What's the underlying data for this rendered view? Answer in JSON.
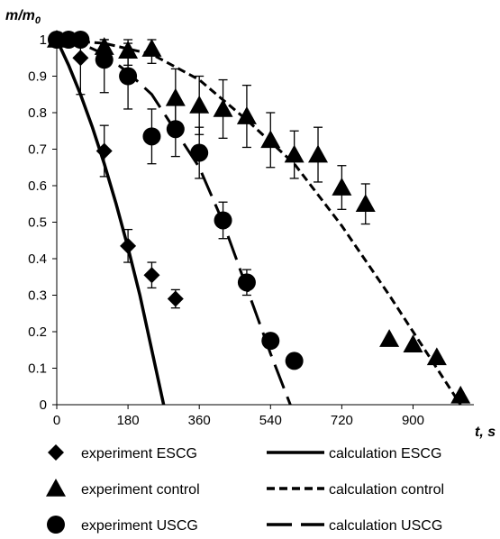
{
  "chart_data": {
    "type": "scatter",
    "xlabel": "t, s",
    "ylabel": "m/m0",
    "xlim": [
      0,
      1040
    ],
    "ylim": [
      0,
      1
    ],
    "x_ticks": [
      0,
      180,
      360,
      540,
      720,
      900
    ],
    "y_ticks": [
      0,
      0.1,
      0.2,
      0.3,
      0.4,
      0.5,
      0.6,
      0.7,
      0.8,
      0.9,
      1
    ],
    "y_tick_labels": [
      "0",
      "0.1",
      "0.2",
      "0.3",
      "0.4",
      "0.5",
      "0.6",
      "0.7",
      "0.8",
      "0.9",
      "1"
    ],
    "grid": false,
    "legend_position": "bottom",
    "series": [
      {
        "name": "experiment ESCG",
        "kind": "points",
        "marker": "diamond",
        "points": [
          {
            "x": 0,
            "y": 1.0,
            "err": 0
          },
          {
            "x": 30,
            "y": 1.0,
            "err": 0
          },
          {
            "x": 60,
            "y": 0.95,
            "err": 0.1
          },
          {
            "x": 120,
            "y": 0.695,
            "err": 0.07
          },
          {
            "x": 180,
            "y": 0.435,
            "err": 0.045
          },
          {
            "x": 240,
            "y": 0.355,
            "err": 0.035
          },
          {
            "x": 300,
            "y": 0.29,
            "err": 0.025
          }
        ]
      },
      {
        "name": "experiment control",
        "kind": "points",
        "marker": "triangle",
        "points": [
          {
            "x": 0,
            "y": 1.0,
            "err": 0
          },
          {
            "x": 120,
            "y": 0.98,
            "err": 0.04
          },
          {
            "x": 180,
            "y": 0.97,
            "err": 0.04
          },
          {
            "x": 240,
            "y": 0.975,
            "err": 0.04
          },
          {
            "x": 300,
            "y": 0.84,
            "err": 0.08
          },
          {
            "x": 360,
            "y": 0.82,
            "err": 0.08
          },
          {
            "x": 420,
            "y": 0.81,
            "err": 0.08
          },
          {
            "x": 480,
            "y": 0.79,
            "err": 0.085
          },
          {
            "x": 540,
            "y": 0.725,
            "err": 0.075
          },
          {
            "x": 600,
            "y": 0.685,
            "err": 0.065
          },
          {
            "x": 660,
            "y": 0.685,
            "err": 0.075
          },
          {
            "x": 720,
            "y": 0.595,
            "err": 0.06
          },
          {
            "x": 780,
            "y": 0.55,
            "err": 0.055
          },
          {
            "x": 840,
            "y": 0.18,
            "err": 0
          },
          {
            "x": 900,
            "y": 0.165,
            "err": 0
          },
          {
            "x": 960,
            "y": 0.13,
            "err": 0
          },
          {
            "x": 1020,
            "y": 0.025,
            "err": 0
          }
        ]
      },
      {
        "name": "experiment USCG",
        "kind": "points",
        "marker": "circle",
        "points": [
          {
            "x": 0,
            "y": 1.0,
            "err": 0
          },
          {
            "x": 30,
            "y": 1.0,
            "err": 0
          },
          {
            "x": 60,
            "y": 1.0,
            "err": 0
          },
          {
            "x": 120,
            "y": 0.945,
            "err": 0.09
          },
          {
            "x": 180,
            "y": 0.9,
            "err": 0.09
          },
          {
            "x": 240,
            "y": 0.735,
            "err": 0.075
          },
          {
            "x": 300,
            "y": 0.755,
            "err": 0.075
          },
          {
            "x": 360,
            "y": 0.69,
            "err": 0.07
          },
          {
            "x": 420,
            "y": 0.505,
            "err": 0.05
          },
          {
            "x": 480,
            "y": 0.335,
            "err": 0.035
          },
          {
            "x": 540,
            "y": 0.175,
            "err": 0
          },
          {
            "x": 600,
            "y": 0.12,
            "err": 0
          }
        ]
      },
      {
        "name": "calculation ESCG",
        "kind": "line",
        "style": "solid",
        "x": [
          0,
          30,
          60,
          90,
          120,
          150,
          180,
          210,
          240,
          270
        ],
        "y": [
          1.0,
          0.93,
          0.85,
          0.76,
          0.66,
          0.55,
          0.43,
          0.3,
          0.15,
          0.0
        ]
      },
      {
        "name": "calculation control",
        "kind": "line",
        "style": "short-dash",
        "x": [
          0,
          120,
          240,
          360,
          480,
          600,
          720,
          840,
          960,
          1020
        ],
        "y": [
          1.0,
          0.99,
          0.96,
          0.89,
          0.78,
          0.66,
          0.49,
          0.3,
          0.1,
          0.0
        ]
      },
      {
        "name": "calculation USCG",
        "kind": "line",
        "style": "long-dash",
        "x": [
          0,
          60,
          120,
          180,
          240,
          300,
          360,
          420,
          480,
          540,
          590
        ],
        "y": [
          1.0,
          0.99,
          0.96,
          0.91,
          0.85,
          0.75,
          0.65,
          0.5,
          0.32,
          0.14,
          0.0
        ]
      }
    ]
  }
}
